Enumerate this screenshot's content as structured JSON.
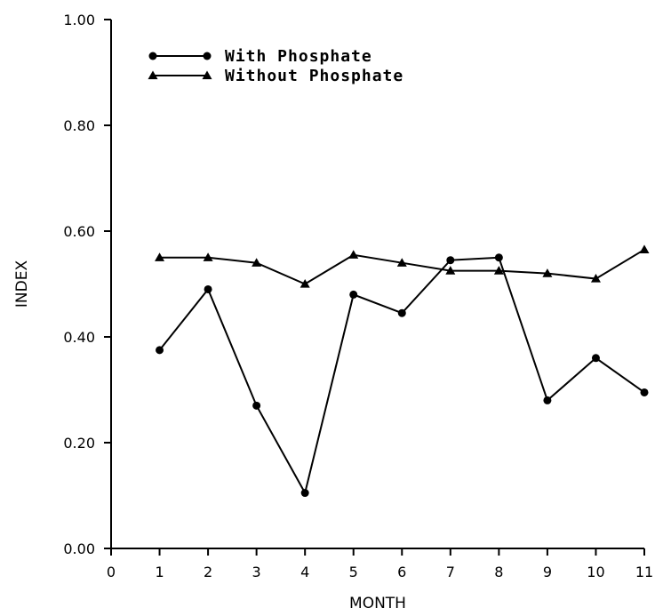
{
  "chart_data": {
    "type": "line",
    "xlabel": "MONTH",
    "ylabel": "INDEX",
    "xlim": [
      0,
      11
    ],
    "ylim": [
      0,
      1
    ],
    "x_ticks": [
      0,
      1,
      2,
      3,
      4,
      5,
      6,
      7,
      8,
      9,
      10,
      11
    ],
    "x_tick_labels": [
      "0",
      "1",
      "2",
      "3",
      "4",
      "5",
      "6",
      "7",
      "8",
      "9",
      "10",
      "11"
    ],
    "y_ticks": [
      0,
      0.2,
      0.4,
      0.6,
      0.8,
      1.0
    ],
    "y_tick_labels": [
      "0.00",
      "0.20",
      "0.40",
      "0.60",
      "0.80",
      "1.00"
    ],
    "grid": false,
    "legend_position": "top-left",
    "x": [
      1,
      2,
      3,
      4,
      5,
      6,
      7,
      8,
      9,
      10,
      11
    ],
    "series": [
      {
        "name": "With Phosphate",
        "marker": "circle",
        "values": [
          0.375,
          0.49,
          0.27,
          0.105,
          0.48,
          0.445,
          0.545,
          0.55,
          0.28,
          0.36,
          0.295
        ]
      },
      {
        "name": "Without Phosphate",
        "marker": "triangle",
        "values": [
          0.55,
          0.55,
          0.54,
          0.5,
          0.555,
          0.54,
          0.525,
          0.525,
          0.52,
          0.51,
          0.565
        ]
      }
    ]
  }
}
